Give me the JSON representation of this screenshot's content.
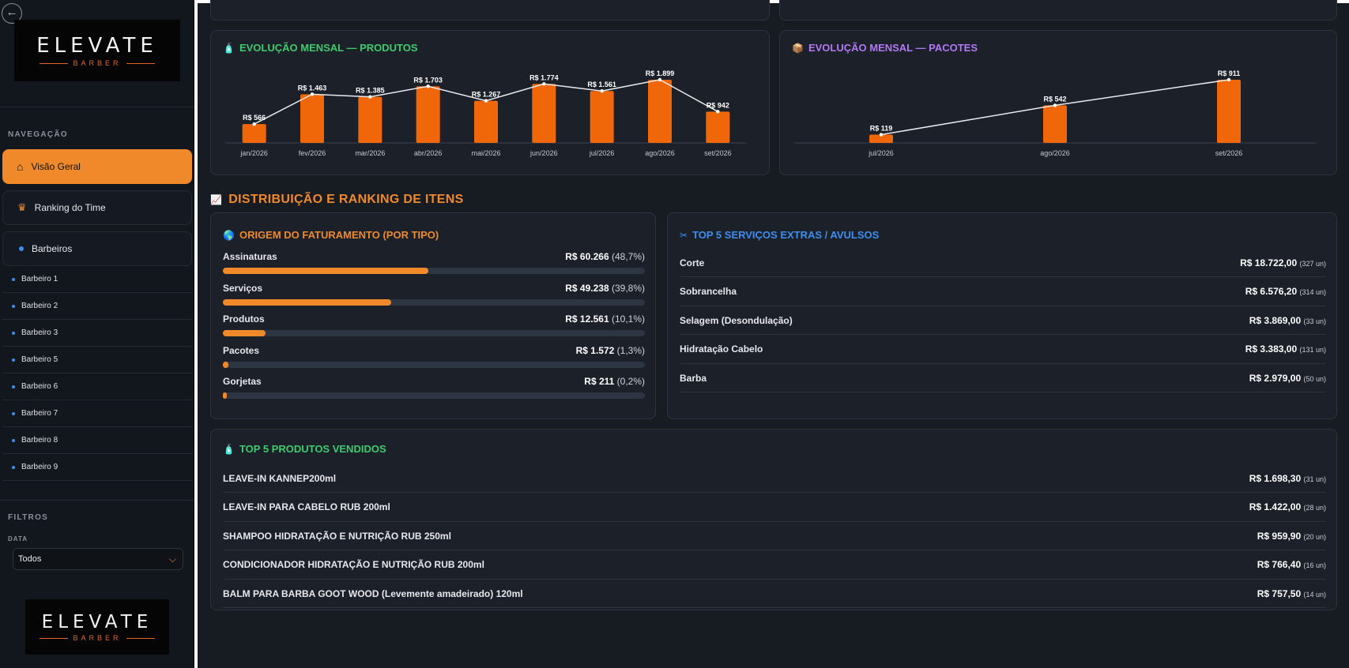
{
  "sidebar": {
    "logo": {
      "word": "ELEVATE",
      "sub": "BARBER"
    },
    "nav_heading": "NAVEGAÇÃO",
    "nav": {
      "overview": "Visão Geral",
      "ranking": "Ranking do Time",
      "barbers": "Barbeiros"
    },
    "barbers": [
      "Barbeiro 1",
      "Barbeiro 2",
      "Barbeiro 3",
      "Barbeiro 5",
      "Barbeiro 6",
      "Barbeiro 7",
      "Barbeiro 8",
      "Barbeiro 9"
    ],
    "filters_heading": "FILTROS",
    "date_label": "DATA",
    "date_value": "Todos"
  },
  "section_title": "DISTRIBUIÇÃO E RANKING DE ITENS",
  "chart_data": [
    {
      "type": "bar",
      "title": "EVOLUÇÃO MENSAL — PRODUTOS",
      "categories": [
        "jan/2026",
        "fev/2026",
        "mar/2026",
        "abr/2026",
        "mai/2026",
        "jun/2026",
        "jul/2026",
        "ago/2026",
        "set/2026"
      ],
      "values": [
        566,
        1463,
        1385,
        1703,
        1267,
        1774,
        1561,
        1899,
        942
      ],
      "labels": [
        "R$ 566",
        "R$ 1.463",
        "R$ 1.385",
        "R$ 1.703",
        "R$ 1.267",
        "R$ 1.774",
        "R$ 1.561",
        "R$ 1.899",
        "R$ 942"
      ],
      "ylim": [
        0,
        1899
      ],
      "bar_color": "#f0670a",
      "line_color": "#e8eaee"
    },
    {
      "type": "bar",
      "title": "EVOLUÇÃO MENSAL — PACOTES",
      "categories": [
        "jul/2026",
        "ago/2026",
        "set/2026"
      ],
      "values": [
        119,
        542,
        911
      ],
      "labels": [
        "R$ 119",
        "R$ 542",
        "R$ 911"
      ],
      "ylim": [
        0,
        911
      ],
      "bar_color": "#f0670a",
      "line_color": "#e8eaee"
    }
  ],
  "origin": {
    "title": "ORIGEM DO FATURAMENTO (POR TIPO)",
    "rows": [
      {
        "label": "Assinaturas",
        "value": "R$ 60.266",
        "pct": "(48,7%)",
        "fraction": 0.487
      },
      {
        "label": "Serviços",
        "value": "R$ 49.238",
        "pct": "(39,8%)",
        "fraction": 0.398
      },
      {
        "label": "Produtos",
        "value": "R$ 12.561",
        "pct": "(10,1%)",
        "fraction": 0.101
      },
      {
        "label": "Pacotes",
        "value": "R$ 1.572",
        "pct": "(1,3%)",
        "fraction": 0.013
      },
      {
        "label": "Gorjetas",
        "value": "R$ 211",
        "pct": "(0,2%)",
        "fraction": 0.002
      }
    ]
  },
  "services": {
    "title": "TOP 5 SERVIÇOS EXTRAS / AVULSOS",
    "rows": [
      {
        "name": "Corte",
        "amount": "R$ 18.722,00",
        "units": "(327 un)"
      },
      {
        "name": "Sobrancelha",
        "amount": "R$ 6.576,20",
        "units": "(314 un)"
      },
      {
        "name": "Selagem (Desondulação)",
        "amount": "R$ 3.869,00",
        "units": "(33 un)"
      },
      {
        "name": "Hidratação Cabelo",
        "amount": "R$ 3.383,00",
        "units": "(131 un)"
      },
      {
        "name": "Barba",
        "amount": "R$ 2.979,00",
        "units": "(50 un)"
      }
    ]
  },
  "products": {
    "title": "TOP 5 PRODUTOS VENDIDOS",
    "rows": [
      {
        "name": "LEAVE-IN KANNEP200ml",
        "amount": "R$ 1.698,30",
        "units": "(31 un)"
      },
      {
        "name": "LEAVE-IN PARA CABELO RUB 200ml",
        "amount": "R$ 1.422,00",
        "units": "(28 un)"
      },
      {
        "name": "SHAMPOO HIDRATAÇÃO E NUTRIÇÃO RUB 250ml",
        "amount": "R$ 959,90",
        "units": "(20 un)"
      },
      {
        "name": "CONDICIONADOR HIDRATAÇÃO E NUTRIÇÃO RUB 200ml",
        "amount": "R$ 766,40",
        "units": "(16 un)"
      },
      {
        "name": "BALM PARA BARBA GOOT WOOD (Levemente amadeirado) 120ml",
        "amount": "R$ 757,50",
        "units": "(14 un)"
      }
    ]
  }
}
